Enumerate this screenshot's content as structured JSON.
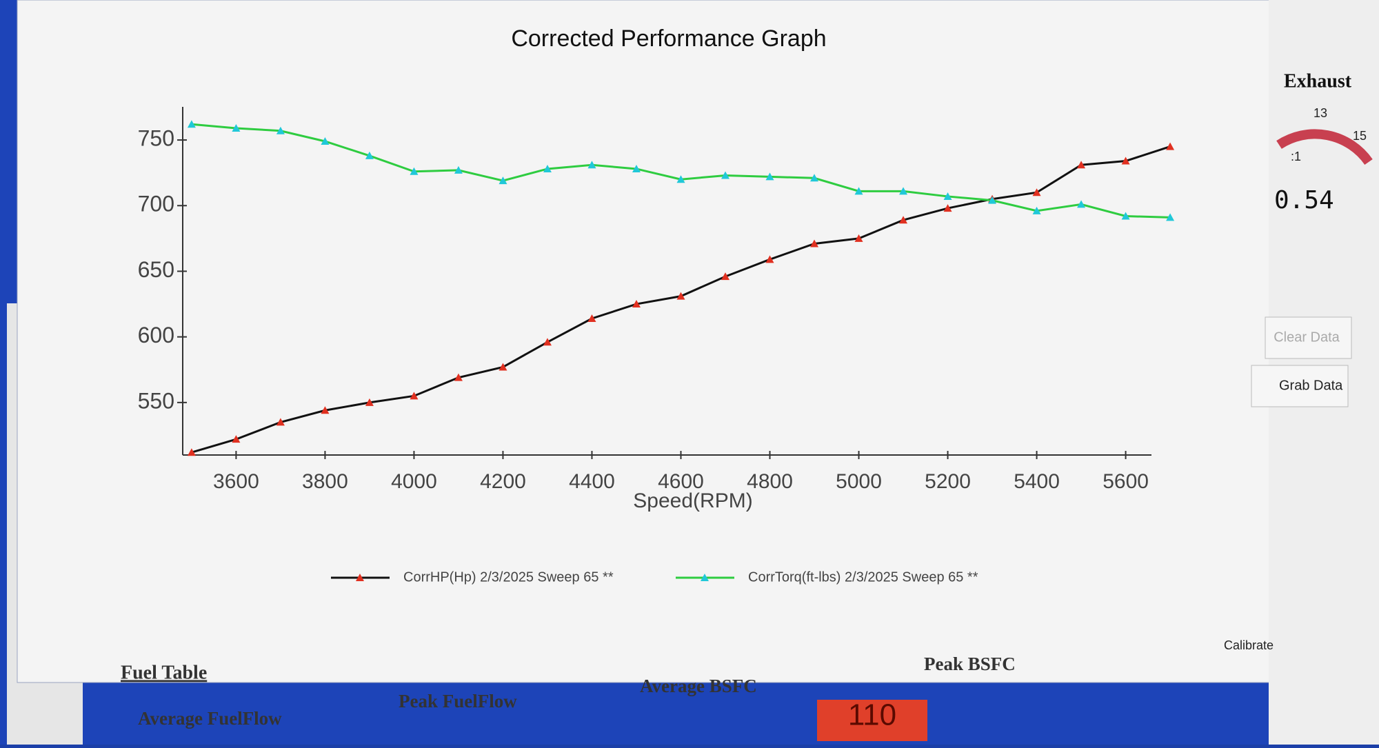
{
  "chart_data": {
    "type": "line",
    "title": "Corrected Performance Graph",
    "x_label": "Speed(RPM)",
    "x": [
      3500,
      3600,
      3700,
      3800,
      3900,
      4000,
      4100,
      4200,
      4300,
      4400,
      4500,
      4600,
      4700,
      4800,
      4900,
      5000,
      5100,
      5200,
      5300,
      5400,
      5500,
      5600,
      5700
    ],
    "xlim": [
      3480,
      5720
    ],
    "xticks": [
      3600,
      3800,
      4000,
      4200,
      4400,
      4600,
      4800,
      5000,
      5200,
      5400,
      5600
    ],
    "ylim": [
      510,
      770
    ],
    "yticks": [
      550,
      600,
      650,
      700,
      750
    ],
    "legend": "bottom",
    "series": [
      {
        "name": "CorrHP(Hp) 2/3/2025 Sweep 65 **",
        "color": "#111111",
        "marker_color": "#e03020",
        "values": [
          512,
          522,
          535,
          544,
          550,
          555,
          569,
          577,
          596,
          614,
          625,
          631,
          646,
          659,
          671,
          675,
          689,
          698,
          705,
          710,
          731,
          734,
          745
        ]
      },
      {
        "name": "CorrTorq(ft-lbs) 2/3/2025 Sweep 65 **",
        "color": "#2ecc40",
        "marker_color": "#20c8d8",
        "values": [
          762,
          759,
          757,
          749,
          738,
          726,
          727,
          719,
          728,
          731,
          728,
          720,
          723,
          722,
          721,
          711,
          711,
          707,
          704,
          696,
          701,
          692,
          691
        ]
      }
    ]
  },
  "fuel_table": {
    "title": "Fuel Table",
    "columns": [
      "Average FuelFlow",
      "Peak FuelFlow",
      "Average BSFC",
      "Peak BSFC"
    ],
    "reading": "110"
  },
  "side_panel": {
    "gauge_title": "Exhaust",
    "gauge_ticks": [
      "13",
      "15"
    ],
    "gauge_ratio": ":1",
    "gauge_value": "0.54",
    "buttons": [
      "Clear Data",
      "Grab Data",
      "Calibrate"
    ]
  }
}
